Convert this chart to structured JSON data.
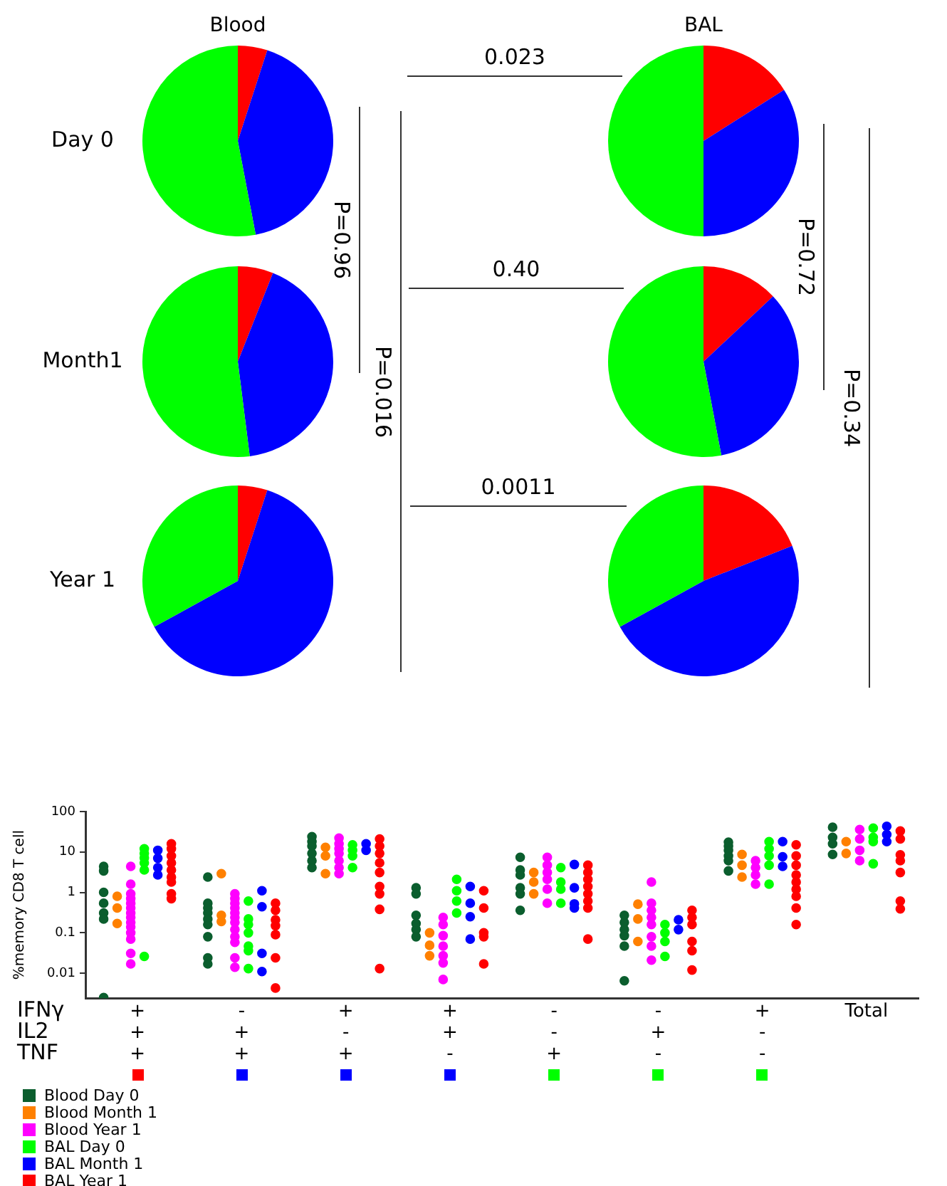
{
  "chart_data": [
    {
      "type": "pie",
      "title": "Blood",
      "ylabel": "Day 0",
      "categories": [
        null,
        null,
        null
      ],
      "values": [
        5,
        42,
        53
      ],
      "colors": [
        "#ff0000",
        "#0000ff",
        "#00ff00"
      ],
      "annotations": [
        "0.023",
        "P=0.96",
        "P=0.016"
      ]
    },
    {
      "type": "pie",
      "title": "BAL",
      "categories": [
        null,
        null,
        null
      ],
      "values": [
        16,
        34,
        50
      ],
      "colors": [
        "#ff0000",
        "#0000ff",
        "#00ff00"
      ],
      "annotations": [
        "P=0.72",
        "P=0.34"
      ]
    },
    {
      "type": "pie",
      "ylabel": "Month1",
      "categories": [
        null,
        null,
        null
      ],
      "values": [
        6,
        42,
        52
      ],
      "colors": [
        "#ff0000",
        "#0000ff",
        "#00ff00"
      ],
      "annotations": [
        "0.40"
      ]
    },
    {
      "type": "pie",
      "categories": [
        null,
        null,
        null
      ],
      "values": [
        13,
        34,
        53
      ],
      "colors": [
        "#ff0000",
        "#0000ff",
        "#00ff00"
      ]
    },
    {
      "type": "pie",
      "ylabel": "Year 1",
      "categories": [
        null,
        null,
        null
      ],
      "values": [
        5,
        62,
        33
      ],
      "colors": [
        "#ff0000",
        "#0000ff",
        "#00ff00"
      ],
      "annotations": [
        "0.0011"
      ]
    },
    {
      "type": "pie",
      "categories": [
        null,
        null,
        null
      ],
      "values": [
        19,
        48,
        33
      ],
      "colors": [
        "#ff0000",
        "#0000ff",
        "#00ff00"
      ]
    },
    {
      "type": "scatter",
      "ylabel": "%memory CD8 T cell",
      "log": "y",
      "grid": false,
      "legend": "bottom left",
      "marker": "circle",
      "categories": [
        "+\n+\n+",
        "-\n+\n+",
        "+\n-\n+",
        "+\n+\n-",
        "-\n-\n+",
        "-\n+\n-",
        "+\n-\n-",
        "Total"
      ],
      "ylim": [
        0.0024,
        100
      ],
      "yticks": [
        0.01,
        0.1,
        1,
        10,
        100
      ],
      "annotations": [
        "IFNγ",
        "IL2",
        "TNF"
      ],
      "series": [
        {
          "name": "Blood Day 0",
          "color": "#0b5e2e",
          "x": [
            "+\n+\n+",
            "+\n+\n+",
            "+\n+\n+",
            "+\n+\n+",
            "+\n+\n+",
            "+\n+\n+",
            "+\n+\n+",
            "-\n+\n+",
            "-\n+\n+",
            "-\n+\n+",
            "-\n+\n+",
            "-\n+\n+",
            "-\n+\n+",
            "-\n+\n+",
            "-\n+\n+",
            "-\n+\n+",
            "+\n-\n+",
            "+\n-\n+",
            "+\n-\n+",
            "+\n-\n+",
            "+\n-\n+",
            "+\n-\n+",
            "+\n+\n-",
            "+\n+\n-",
            "+\n+\n-",
            "+\n+\n-",
            "+\n+\n-",
            "+\n+\n-",
            "-\n-\n+",
            "-\n-\n+",
            "-\n-\n+",
            "-\n-\n+",
            "-\n-\n+",
            "-\n-\n+",
            "-\n+\n-",
            "-\n+\n-",
            "-\n+\n-",
            "-\n+\n-",
            "-\n+\n-",
            "-\n+\n-",
            "+\n-\n-",
            "+\n-\n-",
            "+\n-\n-",
            "+\n-\n-",
            "+\n-\n-",
            "+\n-\n-",
            "Total",
            "Total",
            "Total",
            "Total"
          ],
          "values": [
            4.4,
            3.4,
            1.0,
            0.54,
            0.31,
            0.22,
            0.0025,
            2.4,
            0.54,
            0.41,
            0.31,
            0.22,
            0.16,
            0.08,
            0.024,
            0.017,
            24,
            18,
            14,
            9.2,
            6.1,
            4.1,
            1.3,
            0.92,
            0.27,
            0.17,
            0.12,
            0.08,
            7.4,
            3.6,
            2.7,
            1.3,
            0.92,
            0.36,
            0.27,
            0.18,
            0.12,
            0.085,
            0.047,
            0.0065,
            17.5,
            14,
            11,
            8,
            6.1,
            3.4,
            41,
            23,
            16,
            8.7
          ]
        },
        {
          "name": "Blood Month 1",
          "color": "#ff8000",
          "x": [
            "+\n+\n+",
            "+\n+\n+",
            "+\n+\n+",
            "-\n+\n+",
            "-\n+\n+",
            "-\n+\n+",
            "+\n-\n+",
            "+\n-\n+",
            "+\n-\n+",
            "+\n+\n-",
            "+\n+\n-",
            "+\n+\n-",
            "-\n-\n+",
            "-\n-\n+",
            "-\n-\n+",
            "-\n+\n-",
            "-\n+\n-",
            "-\n+\n-",
            "+\n-\n-",
            "+\n-\n-",
            "+\n-\n-",
            "Total",
            "Total"
          ],
          "values": [
            0.8,
            0.41,
            0.17,
            2.9,
            0.27,
            0.19,
            13,
            8,
            2.9,
            0.1,
            0.049,
            0.027,
            3.1,
            1.8,
            0.92,
            0.51,
            0.22,
            0.061,
            8.7,
            4.7,
            2.4,
            18,
            9.2
          ]
        },
        {
          "name": "Blood Year 1",
          "color": "#ff00ff",
          "x": [
            "+\n+\n+",
            "+\n+\n+",
            "+\n+\n+",
            "+\n+\n+",
            "+\n+\n+",
            "+\n+\n+",
            "+\n+\n+",
            "+\n+\n+",
            "+\n+\n+",
            "+\n+\n+",
            "+\n+\n+",
            "+\n+\n+",
            "+\n+\n+",
            "+\n+\n+",
            "-\n+\n+",
            "-\n+\n+",
            "-\n+\n+",
            "-\n+\n+",
            "-\n+\n+",
            "-\n+\n+",
            "-\n+\n+",
            "-\n+\n+",
            "-\n+\n+",
            "-\n+\n+",
            "-\n+\n+",
            "-\n+\n+",
            "+\n-\n+",
            "+\n-\n+",
            "+\n-\n+",
            "+\n-\n+",
            "+\n-\n+",
            "+\n-\n+",
            "+\n-\n+",
            "+\n+\n-",
            "+\n+\n-",
            "+\n+\n-",
            "+\n+\n-",
            "+\n+\n-",
            "+\n+\n-",
            "+\n+\n-",
            "-\n-\n+",
            "-\n-\n+",
            "-\n-\n+",
            "-\n-\n+",
            "-\n-\n+",
            "-\n-\n+",
            "-\n+\n-",
            "-\n+\n-",
            "-\n+\n-",
            "-\n+\n-",
            "-\n+\n-",
            "-\n+\n-",
            "-\n+\n-",
            "-\n+\n-",
            "+\n-\n-",
            "+\n-\n-",
            "+\n-\n-",
            "+\n-\n-",
            "Total",
            "Total",
            "Total",
            "Total"
          ],
          "values": [
            4.4,
            1.6,
            0.92,
            0.7,
            0.54,
            0.41,
            0.31,
            0.24,
            0.18,
            0.14,
            0.1,
            0.07,
            0.031,
            0.017,
            0.92,
            0.7,
            0.54,
            0.41,
            0.31,
            0.24,
            0.18,
            0.12,
            0.08,
            0.058,
            0.024,
            0.014,
            22,
            16,
            12,
            9.2,
            6.1,
            4.1,
            2.9,
            0.24,
            0.16,
            0.085,
            0.047,
            0.027,
            0.018,
            0.007,
            7.4,
            4.7,
            3.1,
            2.1,
            1.2,
            0.54,
            1.8,
            0.54,
            0.36,
            0.24,
            0.16,
            0.08,
            0.047,
            0.021,
            6.1,
            4.1,
            2.7,
            1.6,
            36,
            21,
            11,
            6.1
          ]
        },
        {
          "name": "BAL Day 0",
          "color": "#00ff00",
          "x": [
            "+\n+\n+",
            "+\n+\n+",
            "+\n+\n+",
            "+\n+\n+",
            "+\n+\n+",
            "+\n+\n+",
            "-\n+\n+",
            "-\n+\n+",
            "-\n+\n+",
            "-\n+\n+",
            "-\n+\n+",
            "-\n+\n+",
            "-\n+\n+",
            "+\n-\n+",
            "+\n-\n+",
            "+\n-\n+",
            "+\n-\n+",
            "+\n+\n-",
            "+\n+\n-",
            "+\n+\n-",
            "+\n+\n-",
            "-\n-\n+",
            "-\n-\n+",
            "-\n-\n+",
            "-\n-\n+",
            "-\n+\n-",
            "-\n+\n-",
            "-\n+\n-",
            "-\n+\n-",
            "+\n-\n-",
            "+\n-\n-",
            "+\n-\n-",
            "+\n-\n-",
            "+\n-\n-",
            "Total",
            "Total",
            "Total",
            "Total"
          ],
          "values": [
            12,
            9.2,
            7.2,
            5.4,
            3.6,
            0.026,
            0.61,
            0.22,
            0.16,
            0.1,
            0.047,
            0.036,
            0.013,
            15,
            11,
            8,
            4.1,
            2.1,
            1.1,
            0.61,
            0.31,
            4.1,
            1.8,
            1.2,
            0.54,
            0.16,
            0.1,
            0.061,
            0.026,
            18,
            12,
            8,
            4.7,
            1.6,
            39,
            23,
            18,
            5.1
          ]
        },
        {
          "name": "BAL Month 1",
          "color": "#0000ff",
          "x": [
            "+\n+\n+",
            "+\n+\n+",
            "+\n+\n+",
            "+\n+\n+",
            "-\n+\n+",
            "-\n+\n+",
            "-\n+\n+",
            "-\n+\n+",
            "+\n-\n+",
            "+\n-\n+",
            "+\n+\n-",
            "+\n+\n-",
            "+\n+\n-",
            "+\n+\n-",
            "-\n-\n+",
            "-\n-\n+",
            "-\n-\n+",
            "-\n-\n+",
            "-\n+\n-",
            "-\n+\n-",
            "+\n-\n-",
            "+\n-\n-",
            "+\n-\n-",
            "Total",
            "Total",
            "Total"
          ],
          "values": [
            11,
            7,
            4.1,
            2.7,
            1.1,
            0.44,
            0.031,
            0.011,
            16,
            11,
            1.4,
            0.54,
            0.25,
            0.07,
            4.9,
            1.3,
            0.52,
            0.41,
            0.21,
            0.12,
            18,
            7.6,
            4.4,
            43,
            27,
            18
          ]
        },
        {
          "name": "BAL Year 1",
          "color": "#ff0000",
          "x": [
            "+\n+\n+",
            "+\n+\n+",
            "+\n+\n+",
            "+\n+\n+",
            "+\n+\n+",
            "+\n+\n+",
            "+\n+\n+",
            "+\n+\n+",
            "+\n+\n+",
            "-\n+\n+",
            "-\n+\n+",
            "-\n+\n+",
            "-\n+\n+",
            "-\n+\n+",
            "-\n+\n+",
            "-\n+\n+",
            "+\n-\n+",
            "+\n-\n+",
            "+\n-\n+",
            "+\n-\n+",
            "+\n-\n+",
            "+\n-\n+",
            "+\n-\n+",
            "+\n-\n+",
            "+\n-\n+",
            "+\n+\n-",
            "+\n+\n-",
            "+\n+\n-",
            "+\n+\n-",
            "+\n+\n-",
            "-\n-\n+",
            "-\n-\n+",
            "-\n-\n+",
            "-\n-\n+",
            "-\n-\n+",
            "-\n-\n+",
            "-\n-\n+",
            "-\n-\n+",
            "-\n+\n-",
            "-\n+\n-",
            "-\n+\n-",
            "-\n+\n-",
            "-\n+\n-",
            "-\n+\n-",
            "+\n-\n-",
            "+\n-\n-",
            "+\n-\n-",
            "+\n-\n-",
            "+\n-\n-",
            "+\n-\n-",
            "+\n-\n-",
            "+\n-\n-",
            "+\n-\n-",
            "Total",
            "Total",
            "Total",
            "Total",
            "Total",
            "Total",
            "Total"
          ],
          "values": [
            16,
            12,
            8,
            5.4,
            3.6,
            2.4,
            1.8,
            0.92,
            0.7,
            0.54,
            0.36,
            0.21,
            0.15,
            0.09,
            0.024,
            0.0043,
            21,
            14,
            9.2,
            5.4,
            3.1,
            1.4,
            0.92,
            0.38,
            0.013,
            1.1,
            0.41,
            0.1,
            0.08,
            0.017,
            4.7,
            3.1,
            2.1,
            1.4,
            0.92,
            0.61,
            0.41,
            0.07,
            0.36,
            0.24,
            0.16,
            0.061,
            0.036,
            0.012,
            15,
            8,
            4.7,
            2.7,
            1.8,
            1.2,
            0.8,
            0.41,
            0.16,
            33,
            21,
            8.5,
            6.1,
            3.1,
            0.61,
            0.39
          ]
        }
      ]
    }
  ]
}
